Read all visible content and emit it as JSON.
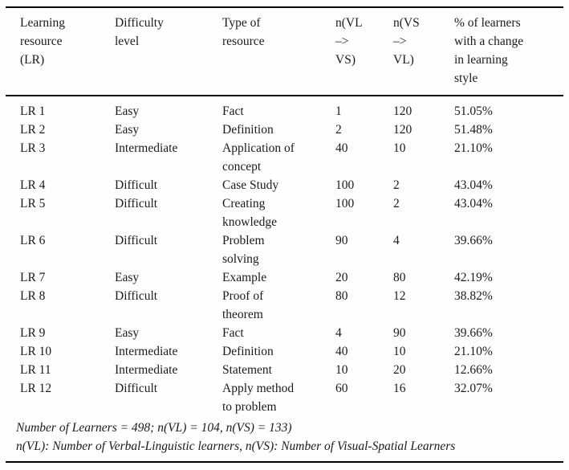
{
  "table": {
    "columns": [
      {
        "key": "lr",
        "label": "Learning\nresource\n(LR)"
      },
      {
        "key": "difficulty",
        "label": "Difficulty\nlevel"
      },
      {
        "key": "type",
        "label": "Type of\nresource"
      },
      {
        "key": "n_vl_vs",
        "label": "n(VL\n–>\nVS)"
      },
      {
        "key": "n_vs_vl",
        "label": "n(VS\n–>\nVL)"
      },
      {
        "key": "pct",
        "label": "% of learners\nwith a change\nin learning\nstyle"
      }
    ],
    "rows": [
      {
        "lr": "LR 1",
        "difficulty": "Easy",
        "type": "Fact",
        "n_vl_vs": "1",
        "n_vs_vl": "120",
        "pct": "51.05%"
      },
      {
        "lr": "LR 2",
        "difficulty": "Easy",
        "type": "Definition",
        "n_vl_vs": "2",
        "n_vs_vl": "120",
        "pct": "51.48%"
      },
      {
        "lr": "LR 3",
        "difficulty": "Intermediate",
        "type": "Application of\nconcept",
        "n_vl_vs": "40",
        "n_vs_vl": "10",
        "pct": "21.10%"
      },
      {
        "lr": "LR 4",
        "difficulty": "Difficult",
        "type": "Case Study",
        "n_vl_vs": "100",
        "n_vs_vl": "2",
        "pct": "43.04%"
      },
      {
        "lr": "LR 5",
        "difficulty": "Difficult",
        "type": "Creating\nknowledge",
        "n_vl_vs": "100",
        "n_vs_vl": "2",
        "pct": "43.04%"
      },
      {
        "lr": "LR 6",
        "difficulty": "Difficult",
        "type": "Problem\nsolving",
        "n_vl_vs": "90",
        "n_vs_vl": "4",
        "pct": "39.66%"
      },
      {
        "lr": "LR 7",
        "difficulty": "Easy",
        "type": "Example",
        "n_vl_vs": "20",
        "n_vs_vl": "80",
        "pct": "42.19%"
      },
      {
        "lr": "LR 8",
        "difficulty": "Difficult",
        "type": "Proof of\ntheorem",
        "n_vl_vs": "80",
        "n_vs_vl": "12",
        "pct": "38.82%"
      },
      {
        "lr": "LR 9",
        "difficulty": "Easy",
        "type": "Fact",
        "n_vl_vs": "4",
        "n_vs_vl": "90",
        "pct": "39.66%"
      },
      {
        "lr": "LR 10",
        "difficulty": "Intermediate",
        "type": "Definition",
        "n_vl_vs": "40",
        "n_vs_vl": "10",
        "pct": "21.10%"
      },
      {
        "lr": "LR 11",
        "difficulty": "Intermediate",
        "type": "Statement",
        "n_vl_vs": "10",
        "n_vs_vl": "20",
        "pct": "12.66%"
      },
      {
        "lr": "LR 12",
        "difficulty": "Difficult",
        "type": "Apply method\nto problem",
        "n_vl_vs": "60",
        "n_vs_vl": "16",
        "pct": "32.07%"
      }
    ],
    "footnotes": [
      "Number of Learners = 498; n(VL) = 104, n(VS) = 133)",
      "n(VL): Number of Verbal-Linguistic learners, n(VS): Number of Visual-Spatial Learners"
    ]
  },
  "colors": {
    "text": "#1b1b1b",
    "rule": "#000000",
    "background": "#fefefe"
  }
}
